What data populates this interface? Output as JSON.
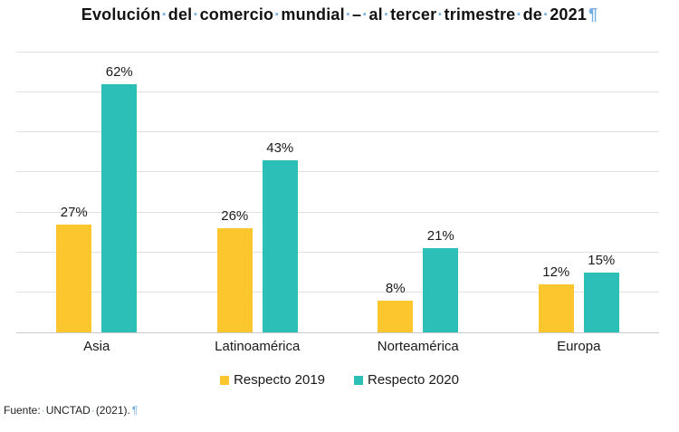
{
  "page": {
    "title": "Evolución del comercio mundial – al tercer trimestre de 2021",
    "source": "Fuente: UNCTAD (2021).",
    "formatting_marks": {
      "space_dot": "·",
      "pilcrow": "¶",
      "color": "#74aee3"
    }
  },
  "chart_data": {
    "type": "bar",
    "title": "Evolución del comercio mundial – al tercer trimestre de 2021",
    "categories": [
      "Asia",
      "Latinoamérica",
      "Norteamérica",
      "Europa"
    ],
    "series": [
      {
        "name": "Respecto 2019",
        "color": "#FCC62F",
        "values": [
          27,
          26,
          8,
          12
        ]
      },
      {
        "name": "Respecto 2020",
        "color": "#2BBFB7",
        "values": [
          62,
          43,
          21,
          15
        ]
      }
    ],
    "value_suffix": "%",
    "data_labels": true,
    "xlabel": "",
    "ylabel": "",
    "ylim": [
      0,
      70
    ],
    "gridline_step": 10,
    "grid": true,
    "legend_position": "bottom",
    "colors": {
      "gridline": "#e2e2e2",
      "baseline": "#c9c9c9",
      "label_text": "#1a1a1a",
      "background": "#ffffff"
    }
  }
}
